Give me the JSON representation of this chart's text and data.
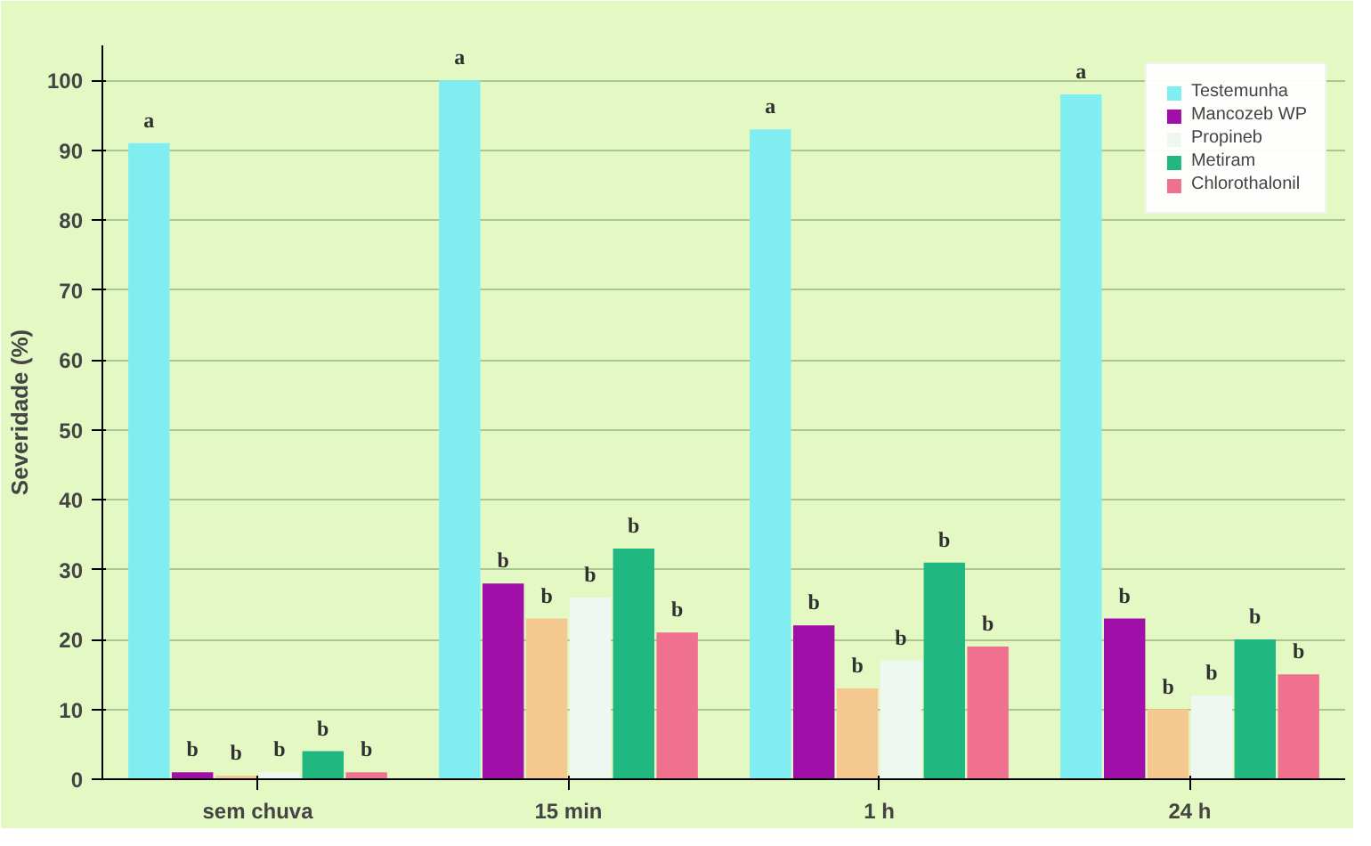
{
  "chart_data": {
    "type": "bar",
    "ylabel": "Severidade (%)",
    "categories": [
      "sem chuva",
      "15 min",
      "1 h",
      "24 h"
    ],
    "series": [
      {
        "name": "Testemunha",
        "color": "#80eef0",
        "values": [
          91,
          100,
          93,
          98
        ],
        "value_labels": [
          "a",
          "a",
          "a",
          "a"
        ]
      },
      {
        "name": "Mancozeb WP",
        "color": "#a010a8",
        "values": [
          1,
          28,
          22,
          23
        ],
        "value_labels": [
          "b",
          "b",
          "b",
          "b"
        ]
      },
      {
        "color": "#f5c890",
        "values": [
          0.5,
          23,
          13,
          10
        ],
        "value_labels": [
          "b",
          "b",
          "b",
          "b"
        ]
      },
      {
        "name": "Propineb",
        "color": "#eef8f0",
        "values": [
          1,
          26,
          17,
          12
        ],
        "value_labels": [
          "b",
          "b",
          "b",
          "b"
        ]
      },
      {
        "name": "Metiram",
        "color": "#20b880",
        "values": [
          4,
          33,
          31,
          20
        ],
        "value_labels": [
          "b",
          "b",
          "b",
          "b"
        ]
      },
      {
        "name": "Chlorothalonil",
        "color": "#f07090",
        "values": [
          1,
          21,
          19,
          15
        ],
        "value_labels": [
          "b",
          "b",
          "b",
          "b"
        ]
      }
    ],
    "ylim": [
      0,
      105
    ],
    "yticks": [
      0,
      10,
      20,
      30,
      40,
      50,
      60,
      70,
      80,
      90,
      100
    ],
    "grid": "y",
    "legend": "top right"
  }
}
